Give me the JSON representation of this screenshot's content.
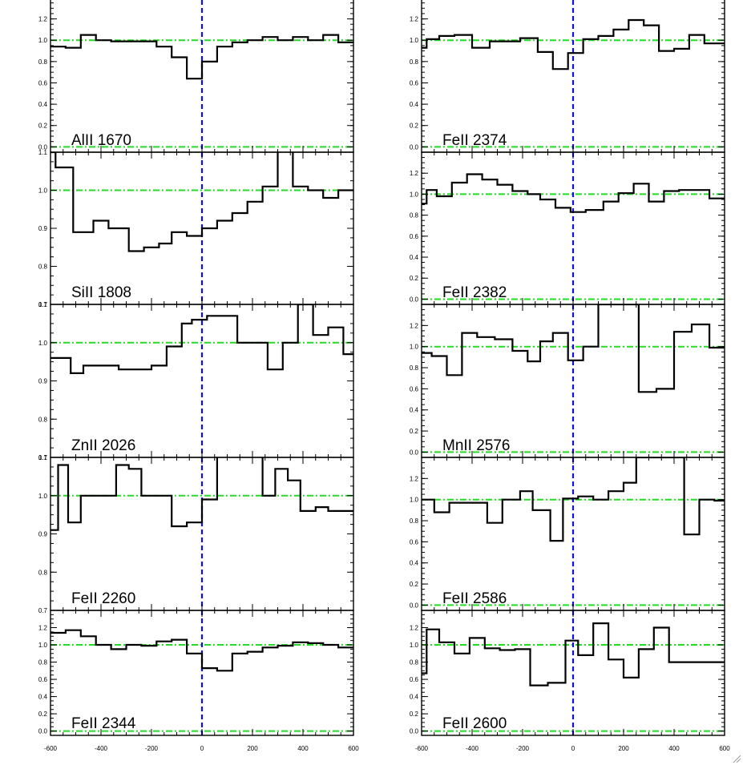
{
  "chart_data": [
    {
      "type": "line",
      "label": "AlII 1670",
      "ylim": [
        -0.05,
        1.4
      ],
      "yticks": [
        0.0,
        0.2,
        0.4,
        0.6,
        0.8,
        1.0,
        1.2
      ],
      "ytick_labels": [
        "0.0",
        "0.2",
        "0.4",
        "0.6",
        "0.8",
        "1.0",
        "1.2"
      ],
      "x": [
        -600,
        -540,
        -480,
        -420,
        -360,
        -300,
        -240,
        -180,
        -120,
        -60,
        0,
        60,
        120,
        180,
        240,
        300,
        360,
        420,
        480,
        540,
        600
      ],
      "y": [
        0.94,
        0.93,
        1.05,
        1.0,
        0.99,
        0.99,
        0.99,
        0.94,
        0.84,
        0.64,
        0.8,
        0.94,
        0.98,
        1.0,
        1.03,
        1.0,
        1.03,
        1.0,
        1.05,
        0.98,
        0.96
      ],
      "continuum": 1.0
    },
    {
      "type": "line",
      "label": "SiII 1808",
      "ylim": [
        0.7,
        1.1
      ],
      "yticks": [
        0.7,
        0.8,
        0.9,
        1.0,
        1.1
      ],
      "ytick_labels": [
        "0.7",
        "0.8",
        "0.9",
        "1.0",
        "1.1"
      ],
      "x": [
        -600,
        -580,
        -510,
        -430,
        -370,
        -290,
        -230,
        -170,
        -120,
        -60,
        0,
        60,
        120,
        180,
        240,
        300,
        360,
        420,
        480,
        540,
        600
      ],
      "y": [
        1.1,
        1.06,
        0.89,
        0.92,
        0.9,
        0.84,
        0.85,
        0.86,
        0.89,
        0.88,
        0.9,
        0.92,
        0.94,
        0.97,
        1.01,
        1.12,
        1.01,
        1.0,
        0.98,
        1.0,
        0.99
      ],
      "continuum": 1.0
    },
    {
      "type": "line",
      "label": "ZnII 2026",
      "ylim": [
        0.7,
        1.1
      ],
      "yticks": [
        0.7,
        0.8,
        0.9,
        1.0,
        1.1
      ],
      "ytick_labels": [
        "0.7",
        "0.8",
        "0.9",
        "1.0",
        "1.1"
      ],
      "x": [
        -600,
        -580,
        -520,
        -470,
        -400,
        -330,
        -260,
        -200,
        -140,
        -80,
        -40,
        20,
        80,
        140,
        200,
        260,
        320,
        380,
        440,
        500,
        560,
        600
      ],
      "y": [
        0.96,
        0.96,
        0.92,
        0.94,
        0.94,
        0.93,
        0.93,
        0.94,
        0.99,
        1.05,
        1.06,
        1.07,
        1.07,
        1.0,
        1.0,
        0.93,
        1.0,
        1.1,
        1.02,
        1.04,
        0.97,
        0.97
      ],
      "continuum": 1.0
    },
    {
      "type": "line",
      "label": "FeII 2260",
      "ylim": [
        0.7,
        1.1
      ],
      "yticks": [
        0.7,
        0.8,
        0.9,
        1.0,
        1.1
      ],
      "ytick_labels": [
        "0.7",
        "0.8",
        "0.9",
        "1.0",
        "1.1"
      ],
      "x": [
        -600,
        -570,
        -530,
        -480,
        -410,
        -340,
        -290,
        -240,
        -180,
        -120,
        -60,
        0,
        60,
        120,
        180,
        240,
        290,
        340,
        390,
        450,
        500,
        560,
        600
      ],
      "y": [
        0.91,
        1.08,
        0.93,
        1.0,
        1.0,
        1.08,
        1.07,
        1.0,
        1.0,
        0.92,
        0.93,
        0.99,
        1.12,
        1.12,
        1.12,
        1.0,
        1.07,
        1.04,
        0.96,
        0.97,
        0.96,
        0.96,
        0.96
      ],
      "continuum": 1.0
    },
    {
      "type": "line",
      "label": "FeII 2344",
      "ylim": [
        -0.05,
        1.4
      ],
      "yticks": [
        0.0,
        0.2,
        0.4,
        0.6,
        0.8,
        1.0,
        1.2
      ],
      "ytick_labels": [
        "0.0",
        "0.2",
        "0.4",
        "0.6",
        "0.8",
        "1.0",
        "1.2"
      ],
      "x": [
        -600,
        -540,
        -480,
        -420,
        -360,
        -300,
        -240,
        -180,
        -120,
        -60,
        0,
        60,
        120,
        180,
        240,
        300,
        360,
        420,
        480,
        540,
        600
      ],
      "y": [
        1.14,
        1.17,
        1.1,
        1.0,
        0.95,
        1.0,
        0.99,
        1.04,
        1.06,
        0.9,
        0.73,
        0.7,
        0.9,
        0.92,
        0.97,
        0.99,
        1.03,
        1.02,
        1.0,
        0.97,
        0.95
      ],
      "continuum": 1.0
    },
    {
      "type": "line",
      "label": "FeII 2374",
      "ylim": [
        -0.05,
        1.4
      ],
      "yticks": [
        0.0,
        0.2,
        0.4,
        0.6,
        0.8,
        1.0,
        1.2
      ],
      "ytick_labels": [
        "0.0",
        "0.2",
        "0.4",
        "0.6",
        "0.8",
        "1.0",
        "1.2"
      ],
      "x": [
        -600,
        -580,
        -530,
        -470,
        -400,
        -330,
        -270,
        -210,
        -140,
        -80,
        -20,
        40,
        100,
        160,
        220,
        280,
        340,
        400,
        460,
        520,
        580,
        600
      ],
      "y": [
        0.93,
        1.01,
        1.04,
        1.05,
        0.93,
        0.99,
        0.99,
        1.02,
        0.89,
        0.73,
        0.88,
        1.01,
        1.04,
        1.1,
        1.19,
        1.14,
        0.9,
        0.92,
        1.05,
        0.97,
        0.97,
        0.97
      ],
      "continuum": 1.0
    },
    {
      "type": "line",
      "label": "FeII 2382",
      "ylim": [
        -0.05,
        1.4
      ],
      "yticks": [
        0.0,
        0.2,
        0.4,
        0.6,
        0.8,
        1.0,
        1.2
      ],
      "ytick_labels": [
        "0.0",
        "0.2",
        "0.4",
        "0.6",
        "0.8",
        "1.0",
        "1.2"
      ],
      "x": [
        -600,
        -580,
        -540,
        -480,
        -420,
        -360,
        -300,
        -240,
        -180,
        -130,
        -70,
        -10,
        50,
        120,
        180,
        240,
        300,
        360,
        420,
        480,
        540,
        600
      ],
      "y": [
        0.91,
        1.04,
        0.98,
        1.11,
        1.19,
        1.14,
        1.09,
        1.03,
        1.0,
        0.95,
        0.87,
        0.83,
        0.85,
        0.93,
        1.01,
        1.1,
        0.93,
        1.03,
        1.04,
        1.04,
        0.96,
        0.96
      ],
      "continuum": 1.0
    },
    {
      "type": "line",
      "label": "MnII 2576",
      "ylim": [
        -0.05,
        1.4
      ],
      "yticks": [
        0.0,
        0.2,
        0.4,
        0.6,
        0.8,
        1.0,
        1.2
      ],
      "ytick_labels": [
        "0.0",
        "0.2",
        "0.4",
        "0.6",
        "0.8",
        "1.0",
        "1.2"
      ],
      "x": [
        -600,
        -560,
        -500,
        -440,
        -380,
        -310,
        -240,
        -180,
        -130,
        -80,
        -20,
        40,
        100,
        150,
        210,
        260,
        330,
        400,
        470,
        540,
        600
      ],
      "y": [
        0.94,
        0.91,
        0.73,
        1.13,
        1.09,
        1.07,
        0.96,
        0.86,
        1.05,
        1.13,
        0.87,
        1.0,
        1.4,
        1.4,
        1.4,
        0.57,
        0.6,
        1.14,
        1.21,
        0.99,
        0.99
      ],
      "continuum": 1.0
    },
    {
      "type": "line",
      "label": "FeII 2586",
      "ylim": [
        -0.05,
        1.4
      ],
      "yticks": [
        0.0,
        0.2,
        0.4,
        0.6,
        0.8,
        1.0,
        1.2
      ],
      "ytick_labels": [
        "0.0",
        "0.2",
        "0.4",
        "0.6",
        "0.8",
        "1.0",
        "1.2"
      ],
      "x": [
        -600,
        -550,
        -490,
        -410,
        -340,
        -280,
        -210,
        -160,
        -90,
        -40,
        20,
        80,
        140,
        200,
        250,
        300,
        440,
        500,
        560,
        600
      ],
      "y": [
        1.0,
        0.88,
        0.97,
        0.97,
        0.78,
        1.0,
        1.08,
        0.9,
        0.61,
        1.01,
        1.03,
        1.0,
        1.08,
        1.16,
        1.4,
        1.4,
        0.67,
        1.0,
        0.99,
        0.99
      ],
      "continuum": 1.0
    },
    {
      "type": "line",
      "label": "FeII 2600",
      "ylim": [
        -0.05,
        1.4
      ],
      "yticks": [
        0.0,
        0.2,
        0.4,
        0.6,
        0.8,
        1.0,
        1.2
      ],
      "ytick_labels": [
        "0.0",
        "0.2",
        "0.4",
        "0.6",
        "0.8",
        "1.0",
        "1.2"
      ],
      "x": [
        -600,
        -580,
        -530,
        -470,
        -410,
        -350,
        -290,
        -230,
        -170,
        -100,
        -30,
        20,
        80,
        140,
        200,
        260,
        320,
        380,
        440,
        500,
        560,
        600
      ],
      "y": [
        0.67,
        1.18,
        1.03,
        0.9,
        1.08,
        0.96,
        0.94,
        0.95,
        0.53,
        0.56,
        1.05,
        0.88,
        1.25,
        0.83,
        0.62,
        0.95,
        1.2,
        0.8,
        0.8,
        0.8,
        0.8,
        0.8
      ],
      "continuum": 1.0
    }
  ],
  "x_axis": {
    "xlim": [
      -600,
      600
    ],
    "ticks": [
      -600,
      -400,
      -200,
      0,
      200,
      400,
      600
    ],
    "tick_labels": [
      "-600",
      "-400",
      "-200",
      "0",
      "200",
      "400",
      "600"
    ]
  },
  "colors": {
    "flux": "#000000",
    "continuum": "#22dd22",
    "zero_velocity": "#1010e0"
  },
  "layout": {
    "columns": 2,
    "rows": 5,
    "column_order": [
      "left",
      "right"
    ]
  }
}
